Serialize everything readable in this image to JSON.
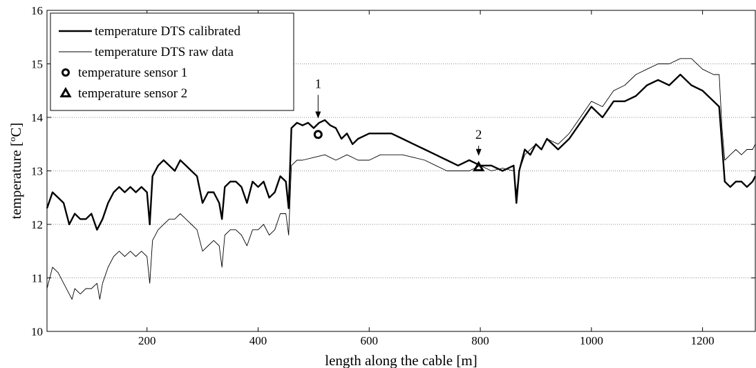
{
  "chart_data": {
    "type": "line",
    "title": "",
    "xlabel": "length along the cable [m]",
    "ylabel_main": "temperature [",
    "ylabel_sup": "o",
    "ylabel_end": "C]",
    "xlim": [
      20,
      1295
    ],
    "ylim": [
      10,
      16
    ],
    "xticks": [
      200,
      400,
      600,
      800,
      1000,
      1200
    ],
    "yticks": [
      10,
      11,
      12,
      13,
      14,
      15,
      16
    ],
    "grid": "horizontal dotted",
    "legend_position": "top-left",
    "series": [
      {
        "name": "temperature DTS calibrated",
        "style": "thick",
        "color": "#000000",
        "x": [
          20,
          30,
          40,
          50,
          60,
          70,
          80,
          90,
          100,
          110,
          120,
          130,
          140,
          150,
          160,
          170,
          180,
          190,
          200,
          205,
          210,
          220,
          230,
          240,
          250,
          260,
          270,
          280,
          290,
          300,
          310,
          320,
          330,
          335,
          340,
          350,
          360,
          370,
          380,
          390,
          400,
          410,
          420,
          430,
          440,
          450,
          455,
          460,
          470,
          480,
          490,
          500,
          510,
          520,
          530,
          540,
          550,
          560,
          570,
          580,
          600,
          620,
          640,
          660,
          680,
          700,
          720,
          740,
          760,
          780,
          800,
          820,
          840,
          860,
          865,
          870,
          880,
          890,
          900,
          910,
          920,
          940,
          960,
          980,
          1000,
          1020,
          1040,
          1060,
          1080,
          1100,
          1120,
          1140,
          1160,
          1180,
          1200,
          1220,
          1230,
          1235,
          1240,
          1250,
          1260,
          1270,
          1280,
          1290,
          1295
        ],
        "y": [
          12.3,
          12.6,
          12.5,
          12.4,
          12.0,
          12.2,
          12.1,
          12.1,
          12.2,
          11.9,
          12.1,
          12.4,
          12.6,
          12.7,
          12.6,
          12.7,
          12.6,
          12.7,
          12.6,
          12.0,
          12.9,
          13.1,
          13.2,
          13.1,
          13.0,
          13.2,
          13.1,
          13.0,
          12.9,
          12.4,
          12.6,
          12.6,
          12.4,
          12.1,
          12.7,
          12.8,
          12.8,
          12.7,
          12.4,
          12.8,
          12.7,
          12.8,
          12.5,
          12.6,
          12.9,
          12.8,
          12.3,
          13.8,
          13.9,
          13.85,
          13.9,
          13.8,
          13.9,
          13.95,
          13.85,
          13.8,
          13.6,
          13.7,
          13.5,
          13.6,
          13.7,
          13.7,
          13.7,
          13.6,
          13.5,
          13.4,
          13.3,
          13.2,
          13.1,
          13.2,
          13.1,
          13.1,
          13.0,
          13.1,
          12.4,
          13.0,
          13.4,
          13.3,
          13.5,
          13.4,
          13.6,
          13.4,
          13.6,
          13.9,
          14.2,
          14.0,
          14.3,
          14.3,
          14.4,
          14.6,
          14.7,
          14.6,
          14.8,
          14.6,
          14.5,
          14.3,
          14.2,
          13.5,
          12.8,
          12.7,
          12.8,
          12.8,
          12.7,
          12.8,
          12.9
        ]
      },
      {
        "name": "temperature DTS raw data",
        "style": "thin",
        "color": "#000000",
        "x": [
          20,
          30,
          40,
          50,
          60,
          65,
          70,
          80,
          90,
          100,
          110,
          115,
          120,
          130,
          140,
          150,
          160,
          170,
          180,
          190,
          200,
          205,
          210,
          220,
          230,
          240,
          250,
          260,
          270,
          280,
          290,
          300,
          310,
          320,
          330,
          335,
          340,
          350,
          360,
          370,
          380,
          390,
          400,
          410,
          420,
          430,
          440,
          450,
          455,
          460,
          470,
          480,
          500,
          520,
          540,
          560,
          580,
          600,
          620,
          640,
          660,
          680,
          700,
          720,
          740,
          760,
          780,
          800,
          820,
          840,
          860,
          865,
          870,
          880,
          890,
          900,
          910,
          920,
          940,
          960,
          980,
          1000,
          1020,
          1040,
          1060,
          1080,
          1100,
          1120,
          1140,
          1160,
          1180,
          1200,
          1220,
          1230,
          1235,
          1240,
          1250,
          1260,
          1270,
          1280,
          1290,
          1295
        ],
        "y": [
          10.8,
          11.2,
          11.1,
          10.9,
          10.7,
          10.6,
          10.8,
          10.7,
          10.8,
          10.8,
          10.9,
          10.6,
          10.9,
          11.2,
          11.4,
          11.5,
          11.4,
          11.5,
          11.4,
          11.5,
          11.4,
          10.9,
          11.7,
          11.9,
          12.0,
          12.1,
          12.1,
          12.2,
          12.1,
          12.0,
          11.9,
          11.5,
          11.6,
          11.7,
          11.6,
          11.2,
          11.8,
          11.9,
          11.9,
          11.8,
          11.6,
          11.9,
          11.9,
          12.0,
          11.8,
          11.9,
          12.2,
          12.2,
          11.8,
          13.1,
          13.2,
          13.2,
          13.25,
          13.3,
          13.2,
          13.3,
          13.2,
          13.2,
          13.3,
          13.3,
          13.3,
          13.25,
          13.2,
          13.1,
          13.0,
          13.0,
          13.0,
          13.1,
          13.0,
          13.05,
          13.0,
          12.6,
          13.0,
          13.3,
          13.4,
          13.5,
          13.4,
          13.6,
          13.5,
          13.7,
          14.0,
          14.3,
          14.2,
          14.5,
          14.6,
          14.8,
          14.9,
          15.0,
          15.0,
          15.1,
          15.1,
          14.9,
          14.8,
          14.8,
          13.8,
          13.2,
          13.3,
          13.4,
          13.3,
          13.4,
          13.4,
          13.5
        ]
      }
    ],
    "markers": [
      {
        "name": "temperature sensor 1",
        "symbol": "circle",
        "x": 508,
        "y": 13.68
      },
      {
        "name": "temperature sensor 2",
        "symbol": "triangle",
        "x": 797,
        "y": 13.07
      }
    ],
    "annotations": [
      {
        "label": "1",
        "x": 508,
        "y_text": 14.55,
        "y_arrow_start": 14.42,
        "y_arrow_end": 13.98
      },
      {
        "label": "2",
        "x": 797,
        "y_text": 13.6,
        "y_arrow_start": 13.47,
        "y_arrow_end": 13.28
      }
    ]
  }
}
